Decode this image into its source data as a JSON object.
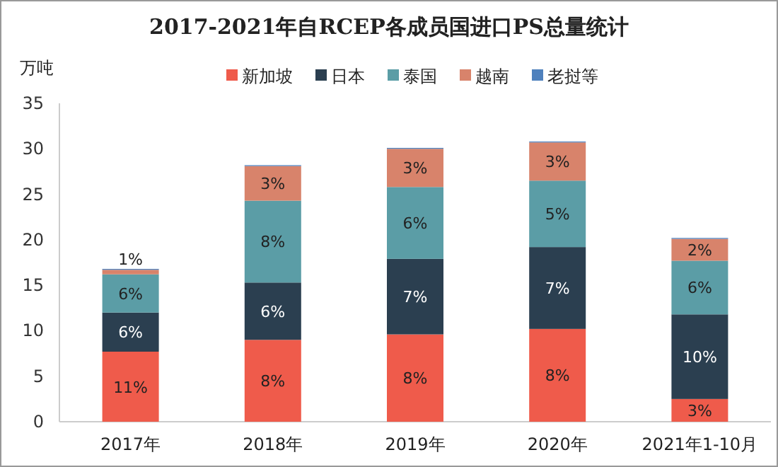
{
  "chart_data": {
    "type": "bar",
    "stacked": true,
    "title": "2017-2021年自RCEP各成员国进口PS总量统计",
    "ylabel": "万吨",
    "categories": [
      "2017年",
      "2018年",
      "2019年",
      "2020年",
      "2021年1-10月"
    ],
    "ylim": [
      0,
      35
    ],
    "yticks": [
      0,
      5,
      10,
      15,
      20,
      25,
      30,
      35
    ],
    "grid": false,
    "legend": "top",
    "series": [
      {
        "name": "新加坡",
        "color": "#ef5b4b",
        "values": [
          7.7,
          9.0,
          9.6,
          10.2,
          2.5
        ]
      },
      {
        "name": "日本",
        "color": "#2b3f50",
        "values": [
          4.3,
          6.3,
          8.3,
          9.0,
          9.3
        ]
      },
      {
        "name": "泰国",
        "color": "#5b9da6",
        "values": [
          4.2,
          9.0,
          7.9,
          7.3,
          5.9
        ]
      },
      {
        "name": "越南",
        "color": "#d8836b",
        "values": [
          0.5,
          3.8,
          4.2,
          4.2,
          2.4
        ]
      },
      {
        "name": "老挝等",
        "color": "#4f81bd",
        "values": [
          0.1,
          0.1,
          0.1,
          0.1,
          0.1
        ]
      }
    ],
    "annotations": [
      "11%",
      "6%",
      "6%",
      "1%",
      "8%",
      "6%",
      "8%",
      "3%",
      "8%",
      "7%",
      "6%",
      "3%",
      "8%",
      "7%",
      "5%",
      "3%",
      "3%",
      "10%",
      "6%",
      "2%"
    ]
  }
}
